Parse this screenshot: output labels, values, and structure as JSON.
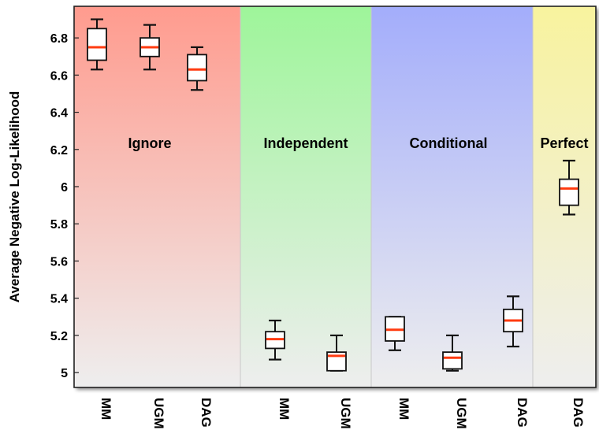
{
  "chart_data": {
    "type": "boxplot",
    "ylabel": "Average Negative Log-Likelihood",
    "ylim": [
      4.92,
      6.97
    ],
    "yticks": [
      5,
      5.2,
      5.4,
      5.6,
      5.8,
      6,
      6.2,
      6.4,
      6.6,
      6.8
    ],
    "ytick_labels": [
      "5",
      "5.2",
      "5.4",
      "5.6",
      "5.8",
      "6",
      "6.2",
      "6.4",
      "6.6",
      "6.8"
    ],
    "groups": [
      {
        "name": "Ignore",
        "color": "#ff9b8e"
      },
      {
        "name": "Independent",
        "color": "#9ef59a"
      },
      {
        "name": "Conditional",
        "color": "#a3adfb"
      },
      {
        "name": "Perfect",
        "color": "#f8f39e"
      }
    ],
    "boxes": [
      {
        "group": "Ignore",
        "label": "MM",
        "whisker_low": 6.63,
        "q1": 6.68,
        "median": 6.75,
        "q3": 6.85,
        "whisker_high": 6.9
      },
      {
        "group": "Ignore",
        "label": "UGM",
        "whisker_low": 6.63,
        "q1": 6.7,
        "median": 6.75,
        "q3": 6.8,
        "whisker_high": 6.87
      },
      {
        "group": "Ignore",
        "label": "DAG",
        "whisker_low": 6.52,
        "q1": 6.57,
        "median": 6.63,
        "q3": 6.71,
        "whisker_high": 6.75
      },
      {
        "group": "Independent",
        "label": "MM",
        "whisker_low": 5.07,
        "q1": 5.13,
        "median": 5.18,
        "q3": 5.22,
        "whisker_high": 5.28
      },
      {
        "group": "Independent",
        "label": "UGM",
        "whisker_low": 5.01,
        "q1": 5.01,
        "median": 5.09,
        "q3": 5.11,
        "whisker_high": 5.2
      },
      {
        "group": "Conditional",
        "label": "MM",
        "whisker_low": 5.12,
        "q1": 5.17,
        "median": 5.23,
        "q3": 5.3,
        "whisker_high": 5.3
      },
      {
        "group": "Conditional",
        "label": "UGM",
        "whisker_low": 5.01,
        "q1": 5.02,
        "median": 5.08,
        "q3": 5.11,
        "whisker_high": 5.2
      },
      {
        "group": "Conditional",
        "label": "DAG",
        "whisker_low": 5.14,
        "q1": 5.22,
        "median": 5.28,
        "q3": 5.34,
        "whisker_high": 5.41
      },
      {
        "group": "Perfect",
        "label": "DAG",
        "whisker_low": 5.85,
        "q1": 5.9,
        "median": 5.99,
        "q3": 6.04,
        "whisker_high": 6.14
      }
    ],
    "median_color": "#ff3b10",
    "grid": false,
    "legend": "none"
  }
}
